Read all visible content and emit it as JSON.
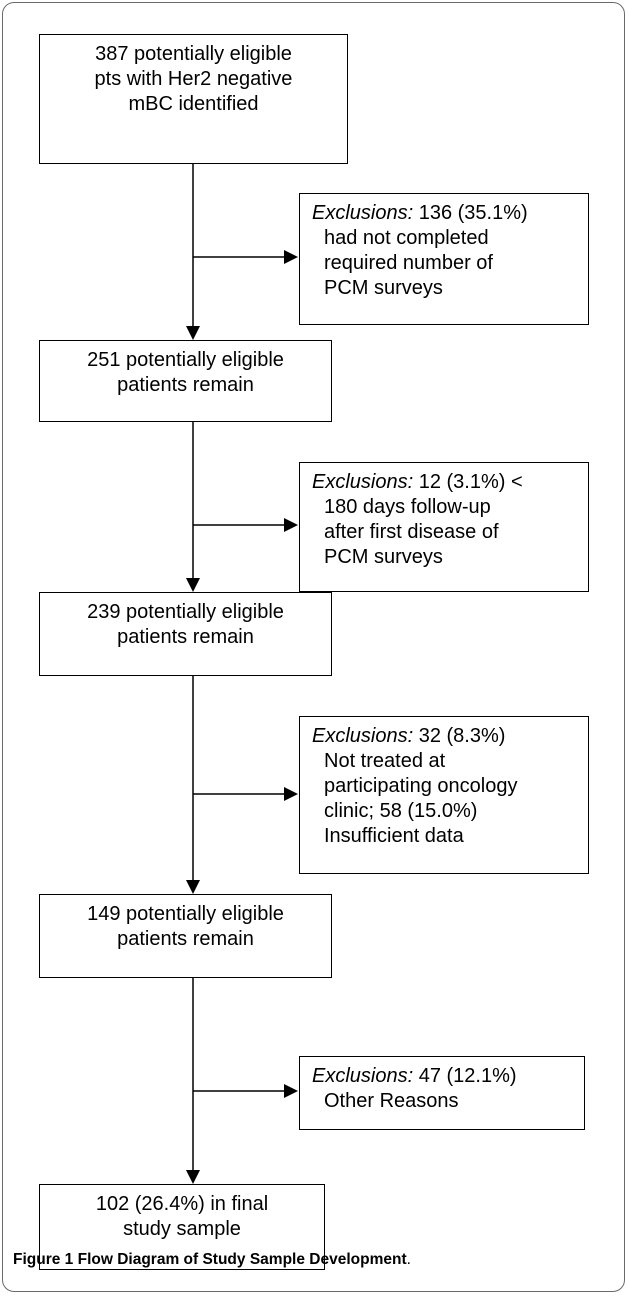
{
  "steps": [
    {
      "lines": [
        "387 potentially eligible",
        "pts with Her2 negative",
        "mBC identified"
      ]
    },
    {
      "lines": [
        "251 potentially eligible",
        "patients remain"
      ]
    },
    {
      "lines": [
        "239 potentially eligible",
        "patients remain"
      ]
    },
    {
      "lines": [
        "149 potentially eligible",
        "patients remain"
      ]
    },
    {
      "lines": [
        "102 (26.4%) in final",
        "study sample"
      ]
    }
  ],
  "exclusions": [
    {
      "label": "Exclusions:",
      "first_line": " 136 (35.1%)",
      "lines": [
        "had not completed",
        "required number of",
        "PCM surveys"
      ]
    },
    {
      "label": "Exclusions:",
      "first_line": " 12 (3.1%) <",
      "lines": [
        "180 days follow-up",
        "after first disease of",
        "PCM surveys"
      ]
    },
    {
      "label": "Exclusions:",
      "first_line": " 32 (8.3%)",
      "lines": [
        "Not treated at",
        "participating oncology",
        "clinic; 58 (15.0%)",
        "Insufficient data"
      ]
    },
    {
      "label": "Exclusions:",
      "first_line": " 47 (12.1%)",
      "lines": [
        "Other Reasons"
      ]
    }
  ],
  "caption": {
    "bold": "Figure 1 Flow Diagram of Study Sample Development",
    "tail": "."
  }
}
